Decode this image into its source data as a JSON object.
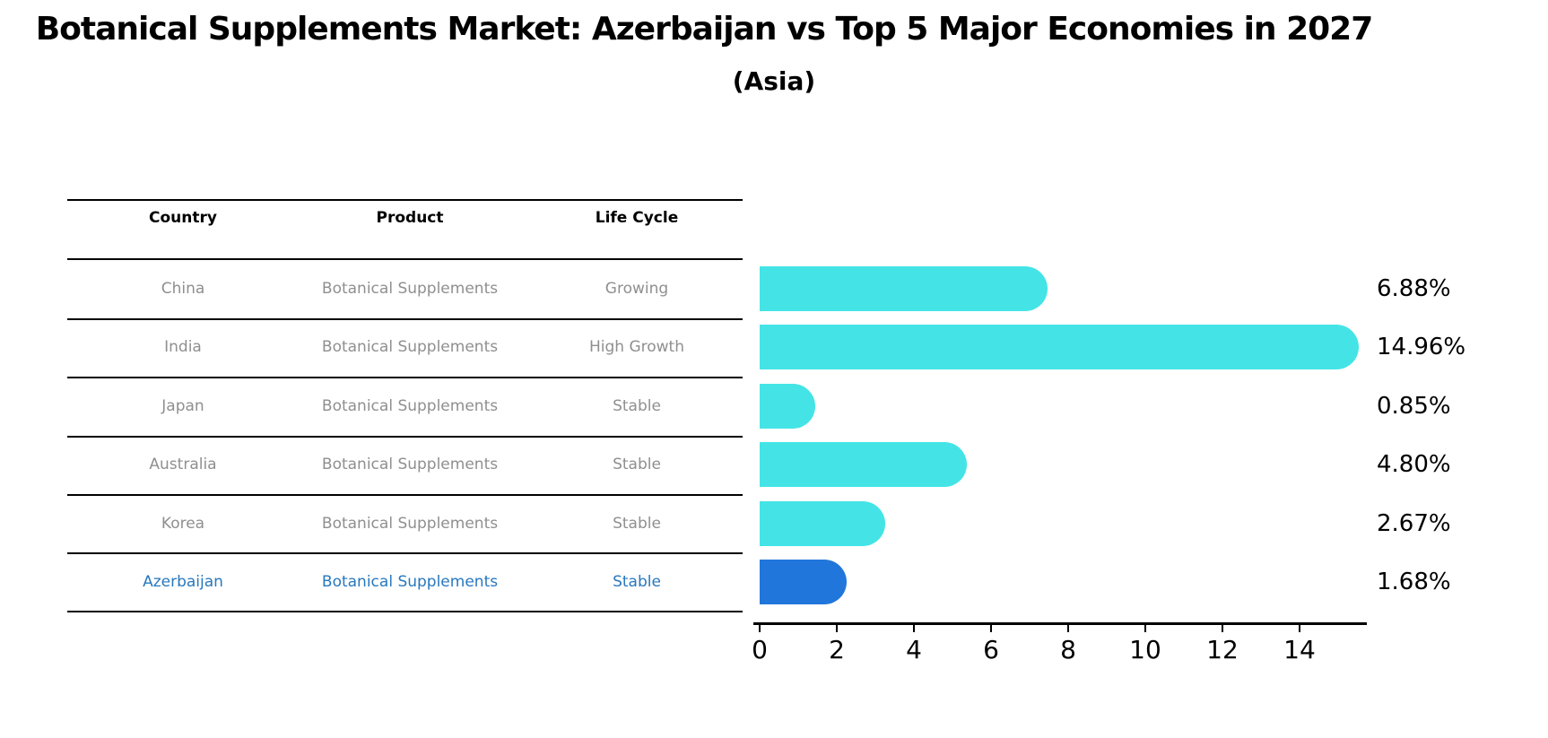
{
  "title": "Botanical Supplements Market: Azerbaijan vs Top 5 Major Economies in 2027",
  "subtitle": "(Asia)",
  "table": {
    "headers": [
      "Country",
      "Product",
      "Life Cycle"
    ],
    "rows": [
      {
        "country": "China",
        "product": "Botanical Supplements",
        "life_cycle": "Growing",
        "highlight": false
      },
      {
        "country": "India",
        "product": "Botanical Supplements",
        "life_cycle": "High Growth",
        "highlight": false
      },
      {
        "country": "Japan",
        "product": "Botanical Supplements",
        "life_cycle": "Stable",
        "highlight": false
      },
      {
        "country": "Australia",
        "product": "Botanical Supplements",
        "life_cycle": "Stable",
        "highlight": false
      },
      {
        "country": "Korea",
        "product": "Botanical Supplements",
        "life_cycle": "Stable",
        "highlight": false
      },
      {
        "country": "Azerbaijan",
        "product": "Botanical Supplements",
        "life_cycle": "Stable",
        "highlight": true
      }
    ]
  },
  "chart_data": {
    "type": "bar",
    "orientation": "horizontal",
    "categories": [
      "China",
      "India",
      "Japan",
      "Australia",
      "Korea",
      "Azerbaijan"
    ],
    "values": [
      6.88,
      14.96,
      0.85,
      4.8,
      2.67,
      1.68
    ],
    "value_labels": [
      "6.88%",
      "14.96%",
      "0.85%",
      "4.80%",
      "2.67%",
      "1.68%"
    ],
    "x_ticks": [
      0,
      2,
      4,
      6,
      8,
      10,
      12,
      14
    ],
    "xlim": [
      0,
      15.9
    ],
    "grid": false,
    "legend": "none",
    "title": "Botanical Supplements Market: Azerbaijan vs Top 5 Major Economies in 2027 (Asia)",
    "xlabel": "",
    "ylabel": "",
    "bar_color": "#44e4e6",
    "highlight_bar_color": "#2176db",
    "highlight_border_style": "dotted",
    "highlight_index": 5,
    "highlight_text_color": "#2878be"
  }
}
